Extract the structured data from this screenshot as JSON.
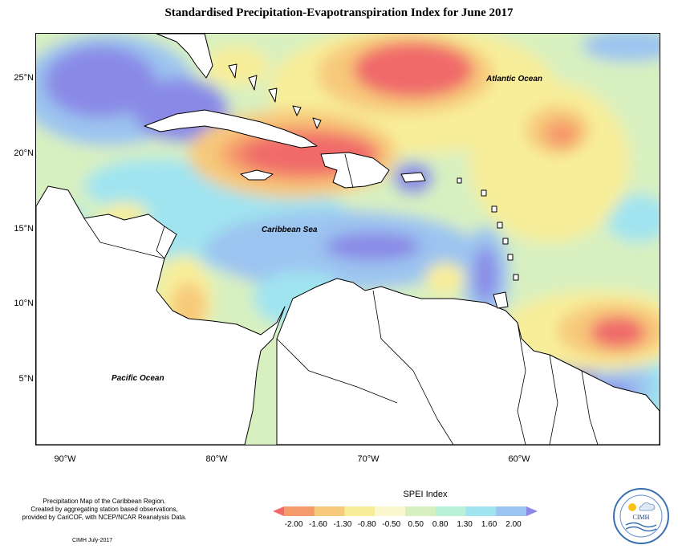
{
  "title": "Standardised Precipitation-Evapotranspiration Index for June 2017",
  "map": {
    "lat_labels": [
      "25°N",
      "20°N",
      "15°N",
      "10°N",
      "5°N"
    ],
    "lon_labels": [
      "90°W",
      "80°W",
      "70°W",
      "60°W"
    ],
    "region_labels": {
      "atlantic": "Atlantic Ocean",
      "caribbean": "Caribbean Sea",
      "pacific": "Pacific Ocean"
    },
    "colors": {
      "land": "#ffffff",
      "border": "#000000",
      "dry_extreme": "#f06a6a",
      "dry_severe": "#f59a6a",
      "dry_moderate": "#f7c97a",
      "dry_mild": "#f8ee9a",
      "normal": "#d8f0c0",
      "wet_mild": "#b8f0d8",
      "wet_moderate": "#a0e4f0",
      "wet_severe": "#9cc4f0",
      "wet_extreme": "#8a8ae6"
    }
  },
  "legend": {
    "title": "SPEI Index",
    "ticks": [
      "-2.00",
      "-1.60",
      "-1.30",
      "-0.80",
      "-0.50",
      "0.50",
      "0.80",
      "1.30",
      "1.60",
      "2.00"
    ],
    "colors": [
      "#f06a6a",
      "#f59a6a",
      "#f7c97a",
      "#f8ee9a",
      "#fbf8d0",
      "#d8f0c0",
      "#b8f0d8",
      "#a0e4f0",
      "#9cc4f0",
      "#8a8ae6"
    ]
  },
  "footer": {
    "line1": "Precipitation Map of the Caribbean Region.",
    "line2": "Created by aggregating station based observations,",
    "line3": "provided by CariCOF, with NCEP/NCAR Reanalysis Data.",
    "credit": "CIMH July-2017"
  },
  "logo": {
    "text": "CIMH"
  }
}
